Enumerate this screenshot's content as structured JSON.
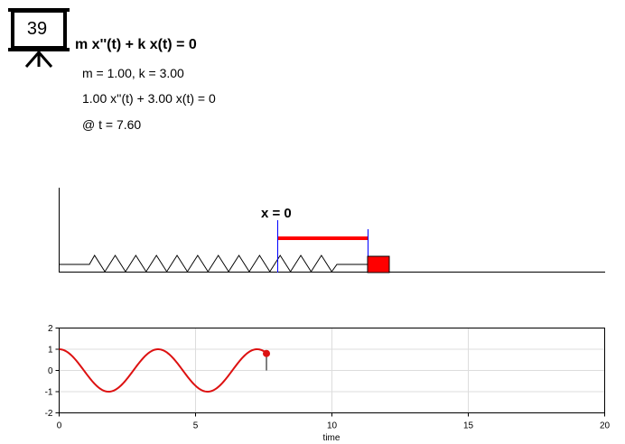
{
  "slide": {
    "number": "39"
  },
  "equation": {
    "title": "m x''(t) + k x(t) = 0",
    "params": "m = 1.00, k = 3.00",
    "substituted": "1.00 x''(t) + 3.00 x(t) = 0",
    "time": "@ t = 7.60"
  },
  "diagram": {
    "equilibrium_label": "x = 0",
    "displacement": 0.8,
    "colors": {
      "mass": "#ff0000",
      "arrow": "#ff0000",
      "marker": "#0000ff"
    }
  },
  "chart_data": {
    "type": "line",
    "xlabel": "time",
    "ylabel": "",
    "xlim": [
      0,
      20
    ],
    "ylim": [
      -2,
      2
    ],
    "xticks": [
      "0",
      "5",
      "10",
      "15",
      "20"
    ],
    "yticks": [
      "2",
      "1",
      "0",
      "-1",
      "-2"
    ],
    "grid": true,
    "series": [
      {
        "function": "cos(sqrt(3) * t)",
        "t_range": [
          0,
          7.6
        ],
        "color": "#dd1111"
      }
    ],
    "current_point": {
      "t": 7.6,
      "x": 0.8
    }
  }
}
